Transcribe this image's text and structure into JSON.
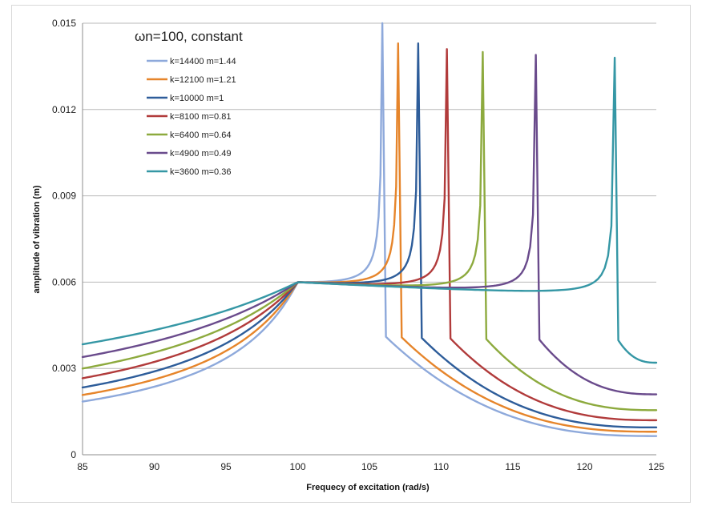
{
  "chart_data": {
    "type": "line",
    "title": "",
    "legend_title": "ωn=100, constant",
    "legend_position": "top-left",
    "xlabel": "Frequecy of excitation (rad/s)",
    "ylabel": "amplitude of vibration (m)",
    "xlim": [
      85,
      125
    ],
    "ylim": [
      0,
      0.015
    ],
    "x_ticks": [
      "85",
      "90",
      "95",
      "100",
      "105",
      "110",
      "115",
      "120",
      "125"
    ],
    "x_tick_values": [
      85,
      90,
      95,
      100,
      105,
      110,
      115,
      120,
      125
    ],
    "y_ticks": [
      "0",
      "0.003",
      "0.006",
      "0.009",
      "0.012",
      "0.015"
    ],
    "y_tick_values": [
      0,
      0.003,
      0.006,
      0.009,
      0.012,
      0.015
    ],
    "grid": "horizontal",
    "series": [
      {
        "name": "k=14400 m=1.44",
        "color": "#8EA9DB",
        "peak_x": 106.0,
        "peak_y": 0.015
      },
      {
        "name": "k=12100 m=1.21",
        "color": "#E6852B",
        "peak_x": 107.1,
        "peak_y": 0.0143
      },
      {
        "name": "k=10000 m=1",
        "color": "#2E5D9A",
        "peak_x": 108.5,
        "peak_y": 0.0143
      },
      {
        "name": "k=8100 m=0.81",
        "color": "#B13B3B",
        "peak_x": 110.5,
        "peak_y": 0.0141
      },
      {
        "name": "k=6400 m=0.64",
        "color": "#8DAA3E",
        "peak_x": 113.0,
        "peak_y": 0.014
      },
      {
        "name": "k=4900 m=0.49",
        "color": "#6A4B8C",
        "peak_x": 116.7,
        "peak_y": 0.0139
      },
      {
        "name": "k=3600 m=0.36",
        "color": "#3597A5",
        "peak_x": 122.2,
        "peak_y": 0.0138
      }
    ]
  }
}
